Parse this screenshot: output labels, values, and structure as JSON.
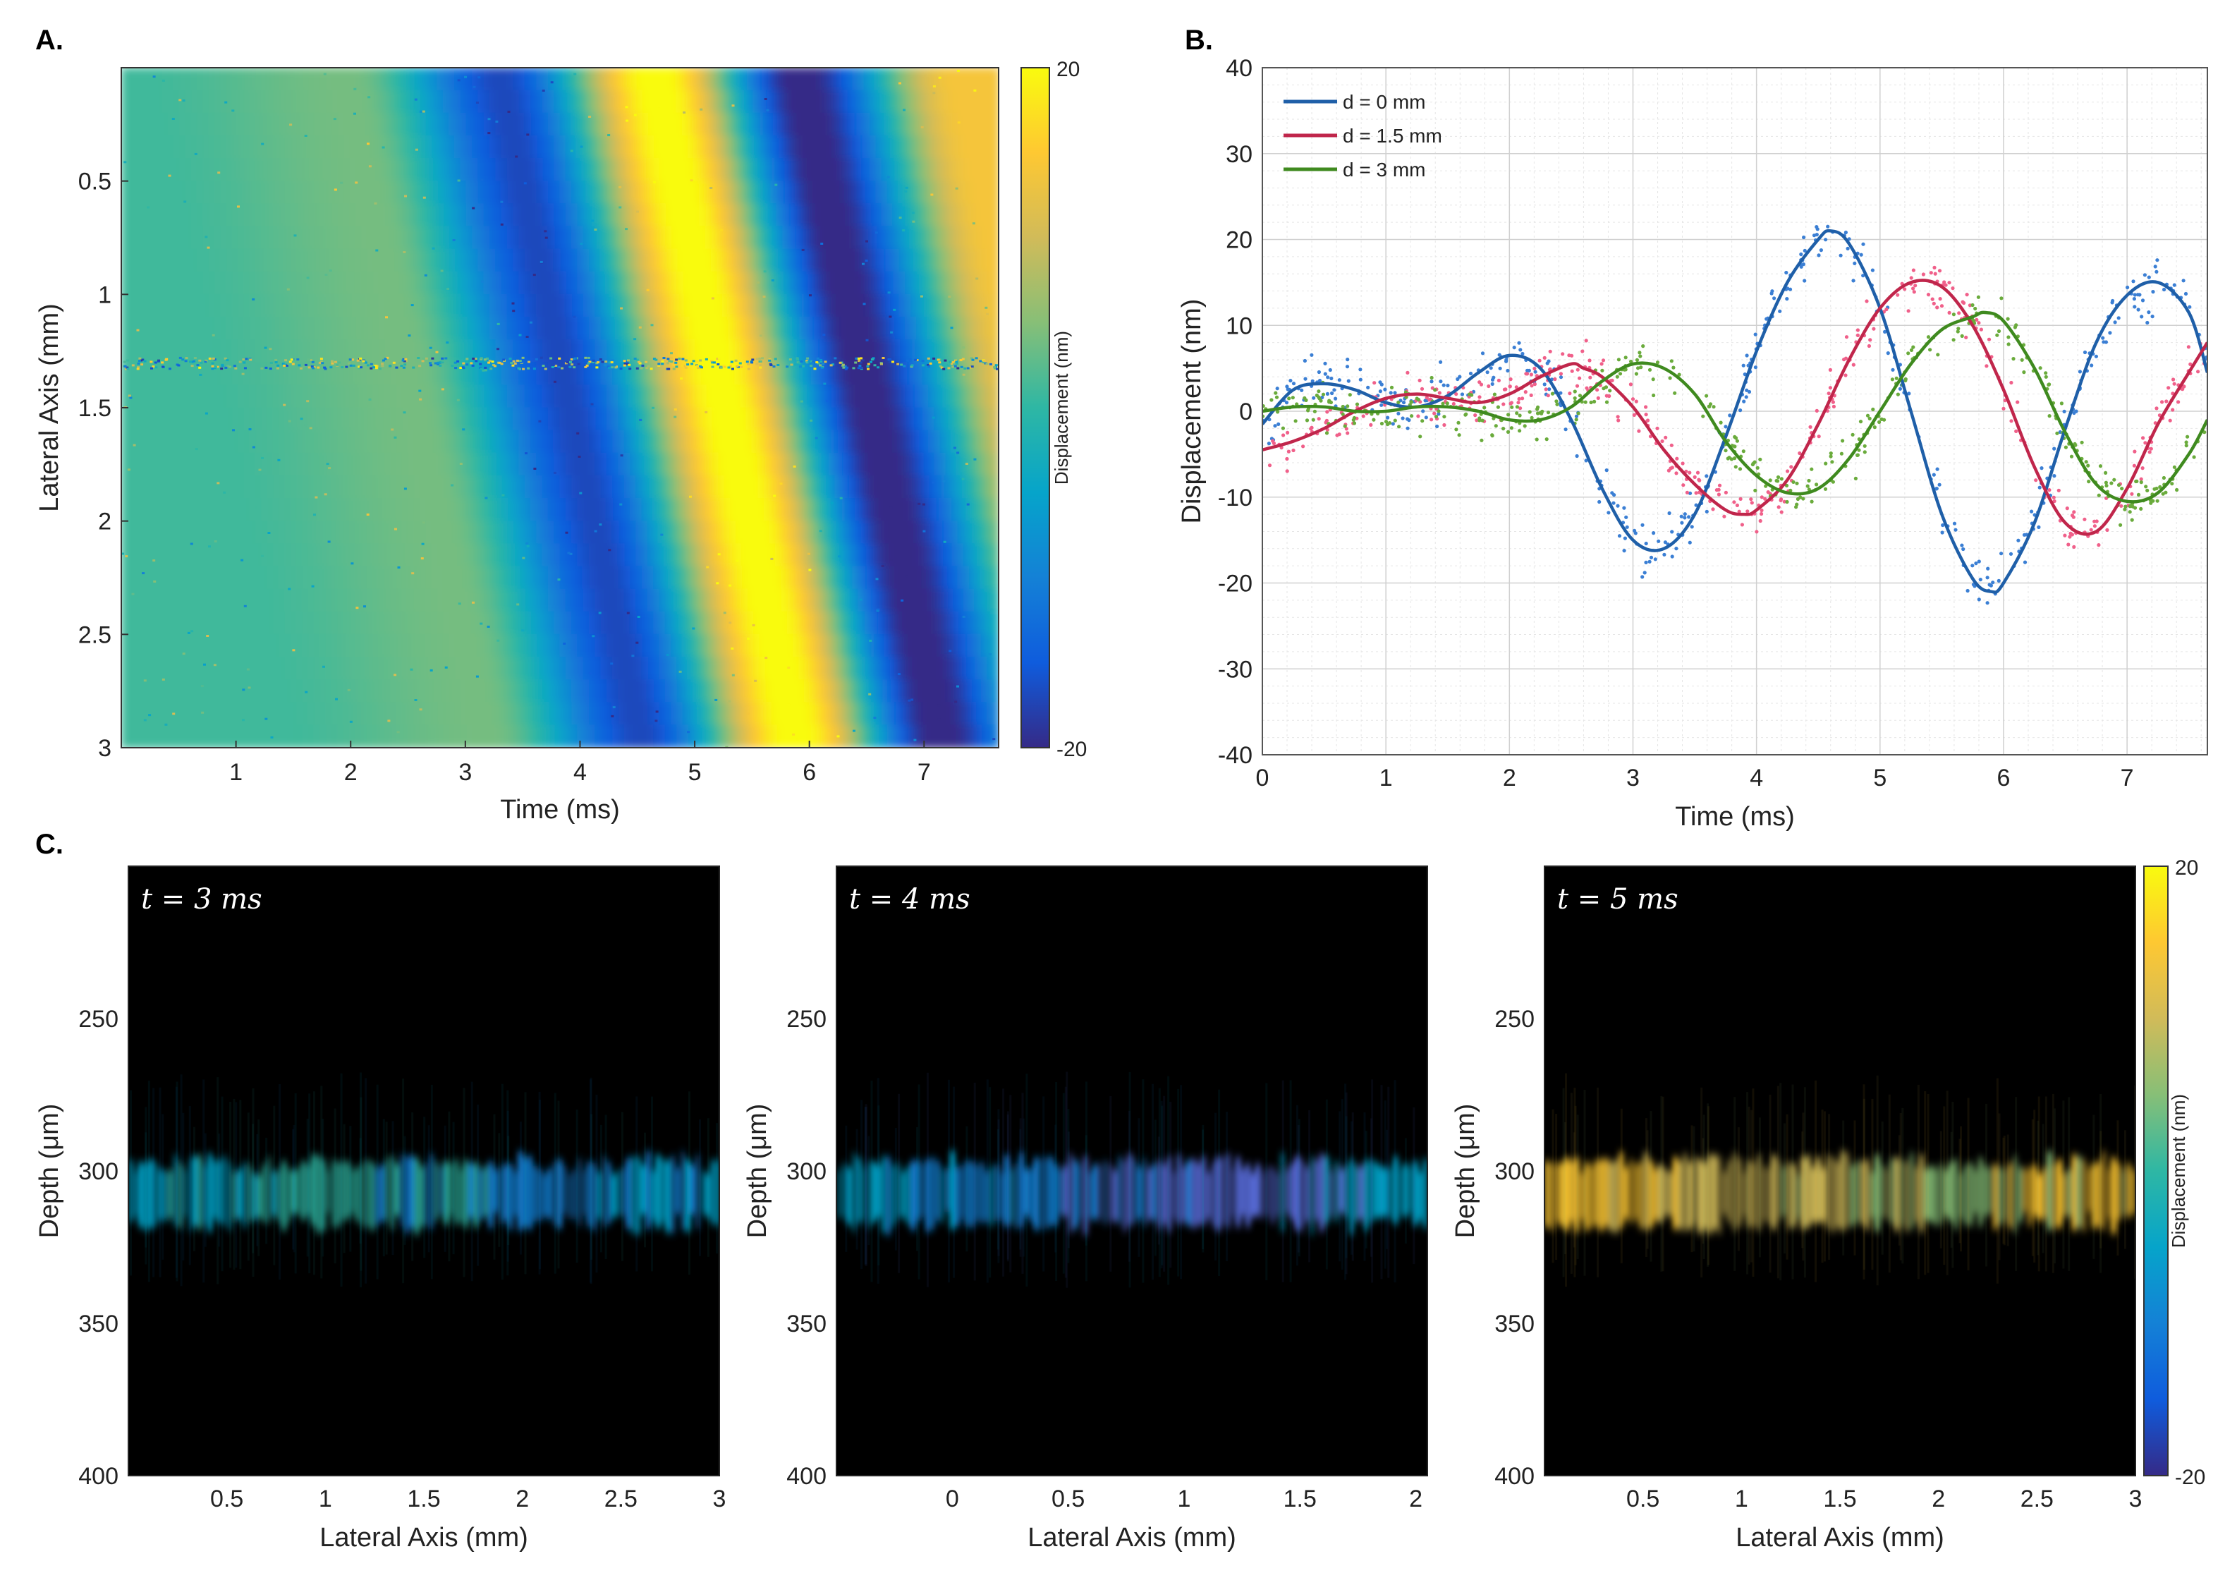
{
  "panels": {
    "a": {
      "letter": "A."
    },
    "b": {
      "letter": "B."
    },
    "c": {
      "letter": "C."
    }
  },
  "colors": {
    "d0": "#1f5fa8",
    "d0_pts": "#3b7fd4",
    "d15": "#c0264b",
    "d15_pts": "#f0608a",
    "d3": "#3f8a1f",
    "d3_pts": "#6aab3c",
    "parula": [
      "#352a87",
      "#0f5cdd",
      "#1481d6",
      "#06a4ca",
      "#2eb7a4",
      "#87bf77",
      "#d1bb59",
      "#fec832",
      "#f9fb0e"
    ]
  },
  "chart_data": [
    {
      "id": "A",
      "type": "heatmap",
      "xlabel": "Time (ms)",
      "ylabel": "Lateral Axis (mm)",
      "xlim": [
        0,
        7.65
      ],
      "ylim": [
        0,
        3
      ],
      "xticks": [
        1,
        2,
        3,
        4,
        5,
        6,
        7
      ],
      "yticks": [
        0.5,
        1,
        1.5,
        2,
        2.5,
        3
      ],
      "colorbar": {
        "label": "Displacement (nm)",
        "min": -20,
        "max": 20,
        "ticks": [
          "20",
          "-20"
        ],
        "colormap": "parula"
      },
      "description_of_field": "Diagonal bands of shear wave displacement propagating with time across lateral axis",
      "bands": [
        {
          "t_at_top": 0.1,
          "value": 1
        },
        {
          "t_at_top": 2.0,
          "value": 4
        },
        {
          "t_at_top": 3.3,
          "value": -17
        },
        {
          "t_at_top": 4.65,
          "value": 21
        },
        {
          "t_at_top": 5.9,
          "value": -21
        },
        {
          "t_at_top": 7.25,
          "value": 14
        }
      ],
      "band_shift_ms_per_mm": 0.42,
      "noise_row_mm": 1.3
    },
    {
      "id": "B",
      "type": "line",
      "xlabel": "Time (ms)",
      "ylabel": "Displacement (nm)",
      "xlim": [
        0,
        7.65
      ],
      "ylim": [
        -40,
        40
      ],
      "xticks": [
        0,
        1,
        2,
        3,
        4,
        5,
        6,
        7
      ],
      "yticks": [
        -40,
        -30,
        -20,
        -10,
        0,
        10,
        20,
        30,
        40
      ],
      "grid": true,
      "legend_position": "top-left",
      "series": [
        {
          "name": "d = 0 mm",
          "x": [
            0,
            0.25,
            0.5,
            0.75,
            1,
            1.25,
            1.5,
            1.75,
            2,
            2.25,
            2.5,
            2.75,
            3,
            3.25,
            3.5,
            3.75,
            4,
            4.25,
            4.5,
            4.6,
            4.75,
            5,
            5.25,
            5.5,
            5.75,
            5.9,
            6,
            6.25,
            6.5,
            6.75,
            7,
            7.25,
            7.5,
            7.65
          ],
          "y": [
            -1.5,
            2.5,
            3.2,
            2.5,
            1.0,
            0.5,
            1.8,
            4.5,
            6.5,
            5.0,
            -1.0,
            -9.0,
            -15.0,
            -16.0,
            -12.0,
            -3.0,
            7.0,
            15.0,
            20.0,
            21.0,
            19.5,
            12.0,
            0.0,
            -12.0,
            -19.5,
            -21.0,
            -20.0,
            -13.0,
            -2.0,
            8.0,
            13.5,
            15.0,
            11.5,
            4.5
          ]
        },
        {
          "name": "d = 1.5 mm",
          "x": [
            0,
            0.25,
            0.5,
            0.75,
            1,
            1.25,
            1.5,
            1.75,
            2,
            2.25,
            2.5,
            2.6,
            2.75,
            3,
            3.25,
            3.5,
            3.75,
            3.9,
            4,
            4.25,
            4.5,
            4.75,
            5,
            5.25,
            5.5,
            5.75,
            6,
            6.25,
            6.5,
            6.75,
            7,
            7.25,
            7.5,
            7.65
          ],
          "y": [
            -4.5,
            -3.5,
            -2.0,
            0.0,
            1.5,
            2.0,
            1.5,
            1.0,
            2.0,
            4.0,
            5.5,
            5.0,
            4.0,
            0.5,
            -4.5,
            -8.5,
            -11.5,
            -12.0,
            -11.5,
            -8.0,
            -1.5,
            6.0,
            12.0,
            15.0,
            14.5,
            10.0,
            2.5,
            -6.5,
            -13.0,
            -14.0,
            -9.0,
            -1.5,
            4.5,
            8.0
          ]
        },
        {
          "name": "d = 3 mm",
          "x": [
            0,
            0.25,
            0.5,
            0.75,
            1,
            1.25,
            1.5,
            1.75,
            2,
            2.25,
            2.5,
            2.75,
            3,
            3.25,
            3.5,
            3.75,
            4,
            4.25,
            4.5,
            4.75,
            5,
            5.25,
            5.5,
            5.75,
            5.85,
            6,
            6.25,
            6.5,
            6.75,
            7,
            7.25,
            7.5,
            7.65
          ],
          "y": [
            0.0,
            0.5,
            0.5,
            0.0,
            0.0,
            0.5,
            0.5,
            0.0,
            -1.0,
            -1.0,
            0.5,
            3.5,
            5.5,
            5.0,
            2.0,
            -3.5,
            -7.5,
            -9.5,
            -9.0,
            -5.5,
            0.0,
            5.5,
            9.5,
            11.0,
            11.5,
            10.5,
            5.0,
            -2.5,
            -8.5,
            -10.5,
            -9.5,
            -5.0,
            -1.0
          ]
        }
      ]
    },
    {
      "id": "C1",
      "type": "heatmap",
      "annotation": "t = 3 ms",
      "xlabel": "Lateral Axis (mm)",
      "ylabel": "Depth (μm)",
      "xlim": [
        0,
        3
      ],
      "xticks": [
        "0.5",
        "1",
        "1.5",
        "2",
        "2.5",
        "3"
      ],
      "ylim": [
        200,
        400
      ],
      "yticks": [
        "250",
        "300",
        "350",
        "400"
      ],
      "band_depth_um": [
        298,
        318
      ],
      "band_colors": [
        "#06a4ca",
        "#2eb7a4",
        "#1481d6"
      ]
    },
    {
      "id": "C2",
      "type": "heatmap",
      "annotation": "t = 4 ms",
      "xlabel": "Lateral Axis (mm)",
      "ylabel": "Depth (μm)",
      "xlim": [
        -0.5,
        2.05
      ],
      "xticks": [
        "0",
        "0.5",
        "1",
        "1.5",
        "2"
      ],
      "ylim": [
        200,
        400
      ],
      "yticks": [
        "250",
        "300",
        "350",
        "400"
      ],
      "band_depth_um": [
        298,
        318
      ],
      "band_colors": [
        "#06a4ca",
        "#1481d6",
        "#5b6fe0"
      ]
    },
    {
      "id": "C3",
      "type": "heatmap",
      "annotation": "t = 5 ms",
      "xlabel": "Lateral Axis (mm)",
      "ylabel": "Depth (μm)",
      "xlim": [
        0,
        3
      ],
      "xticks": [
        "0.5",
        "1",
        "1.5",
        "2",
        "2.5",
        "3"
      ],
      "ylim": [
        200,
        400
      ],
      "yticks": [
        "250",
        "300",
        "350",
        "400"
      ],
      "band_depth_um": [
        298,
        318
      ],
      "band_colors": [
        "#fec832",
        "#d1bb59",
        "#87bf77"
      ],
      "colorbar": {
        "label": "Displacement (nm)",
        "min": -20,
        "max": 20,
        "ticks": [
          "20",
          "-20"
        ],
        "colormap": "parula"
      }
    }
  ]
}
